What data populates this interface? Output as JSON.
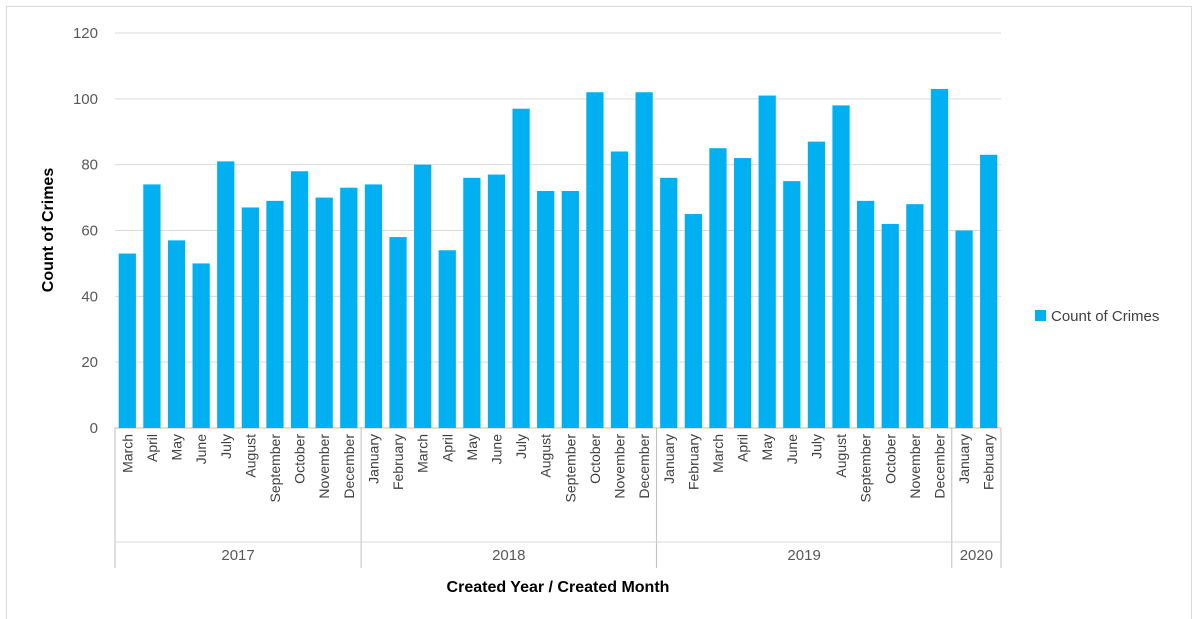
{
  "chart_data": {
    "type": "bar",
    "xlabel": "Created Year / Created Month",
    "ylabel": "Count of Crimes",
    "ylim": [
      0,
      120
    ],
    "yticks": [
      0,
      20,
      40,
      60,
      80,
      100,
      120
    ],
    "grid": true,
    "legend_position": "right",
    "series": [
      {
        "name": "Count of Crimes",
        "color": "#00b0f0",
        "values": [
          53,
          74,
          57,
          50,
          81,
          67,
          69,
          78,
          70,
          73,
          74,
          58,
          80,
          54,
          76,
          77,
          97,
          72,
          72,
          102,
          84,
          102,
          76,
          65,
          85,
          82,
          101,
          75,
          87,
          98,
          69,
          62,
          68,
          103,
          60,
          83
        ]
      }
    ],
    "categories": [
      "March",
      "April",
      "May",
      "June",
      "July",
      "August",
      "September",
      "October",
      "November",
      "December",
      "January",
      "February",
      "March",
      "April",
      "May",
      "June",
      "July",
      "August",
      "September",
      "October",
      "November",
      "December",
      "January",
      "February",
      "March",
      "April",
      "May",
      "June",
      "July",
      "August",
      "September",
      "October",
      "November",
      "December",
      "January",
      "February"
    ],
    "groups": [
      {
        "label": "2017",
        "count": 10
      },
      {
        "label": "2018",
        "count": 12
      },
      {
        "label": "2019",
        "count": 12
      },
      {
        "label": "2020",
        "count": 2
      }
    ]
  }
}
